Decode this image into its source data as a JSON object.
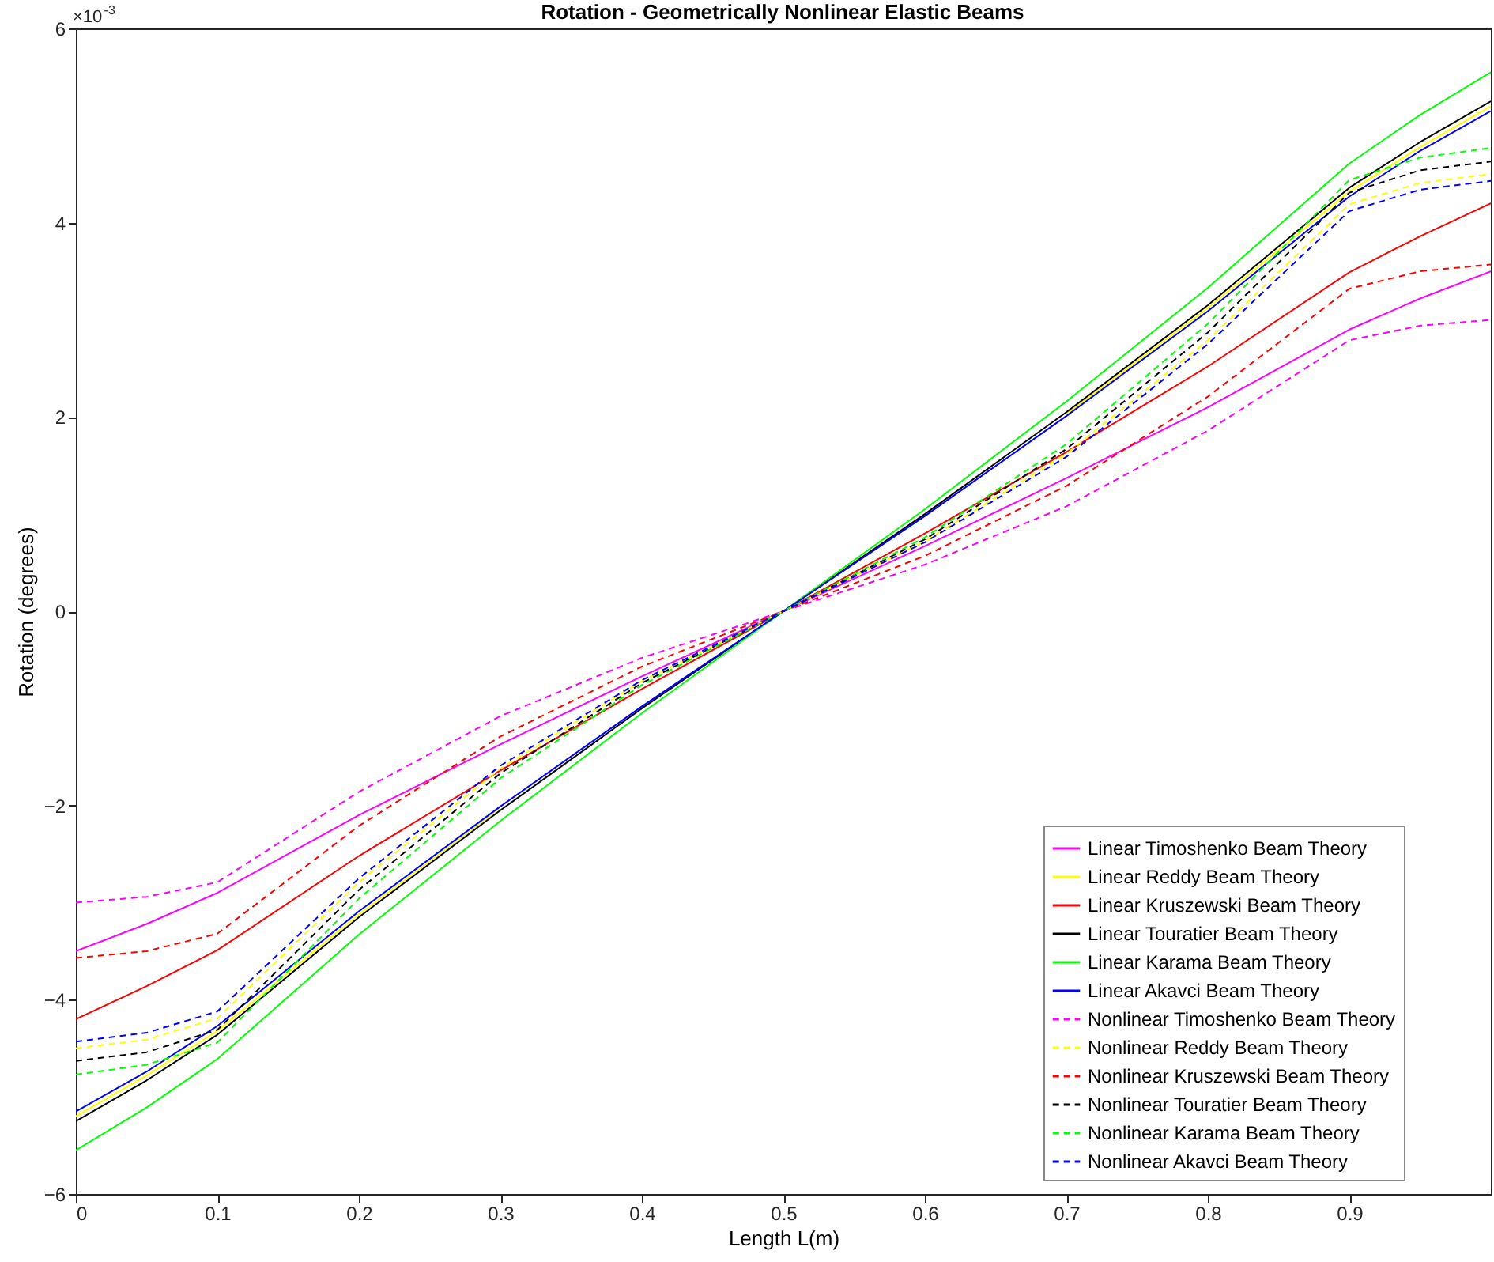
{
  "chart_data": {
    "type": "line",
    "title": "Rotation - Geometrically Nonlinear Elastic Beams",
    "xlabel": "Length L(m)",
    "ylabel": "Rotation (degrees)",
    "annotations": [
      "×10$^{-3}$"
    ],
    "x": [
      0,
      0.05,
      0.1,
      0.2,
      0.3,
      0.4,
      0.5,
      0.6,
      0.7,
      0.8,
      0.9,
      0.95,
      1
    ],
    "xlim": [
      0,
      1
    ],
    "xticks": [
      0,
      0.1,
      0.2,
      0.3,
      0.4,
      0.5,
      0.6,
      0.7,
      0.8,
      0.9
    ],
    "ylim": [
      -6,
      6
    ],
    "yticks": [
      -6,
      -4,
      -2,
      0,
      2,
      4,
      6
    ],
    "grid": false,
    "legend": "bottom right",
    "series": [
      {
        "name": "Linear Timoshenko Beam Theory",
        "color": "#ff00ff",
        "line_style": "solid",
        "values": [
          -3.5,
          -3.22,
          -2.9,
          -2.1,
          -1.37,
          -0.67,
          0,
          0.67,
          1.37,
          2.1,
          2.9,
          3.22,
          3.5
        ]
      },
      {
        "name": "Linear Reddy Beam Theory",
        "color": "#ffff00",
        "line_style": "solid",
        "values": [
          -5.2,
          -4.78,
          -4.32,
          -3.12,
          -2.03,
          null,
          null,
          null,
          2.03,
          3.12,
          4.32,
          4.78,
          5.2
        ]
      },
      {
        "name": "Linear Kruszewski Beam Theory",
        "color": "#ff0000",
        "line_style": "solid",
        "values": [
          -4.2,
          -3.86,
          -3.49,
          -2.52,
          -1.64,
          -0.8,
          0,
          0.8,
          1.64,
          2.52,
          3.49,
          3.86,
          4.2
        ]
      },
      {
        "name": "Linear Touratier Beam Theory",
        "color": "#000000",
        "line_style": "solid",
        "values": [
          -5.25,
          -4.83,
          -4.36,
          -3.15,
          -2.05,
          -1.0,
          0,
          1.0,
          2.05,
          3.15,
          4.36,
          4.83,
          5.25
        ]
      },
      {
        "name": "Linear Karama Beam Theory",
        "color": "#00ff00",
        "line_style": "solid",
        "values": [
          -5.55,
          -5.11,
          -4.61,
          -3.33,
          -2.16,
          -1.05,
          0,
          1.05,
          2.16,
          3.33,
          4.61,
          5.11,
          5.55
        ]
      },
      {
        "name": "Linear Akavci Beam Theory",
        "color": "#0000ff",
        "line_style": "solid",
        "values": [
          -5.15,
          -4.74,
          -4.27,
          -3.09,
          -2.01,
          -0.98,
          0,
          0.98,
          2.01,
          3.09,
          4.27,
          4.74,
          5.15
        ]
      },
      {
        "name": "Nonlinear Timoshenko Beam Theory",
        "color": "#ff00ff",
        "line_style": "dashed",
        "values": [
          -3.0,
          -2.94,
          -2.79,
          -1.86,
          -1.08,
          -0.48,
          0,
          0.48,
          1.08,
          1.86,
          2.79,
          2.94,
          3.0
        ]
      },
      {
        "name": "Nonlinear Reddy Beam Theory",
        "color": "#ffff00",
        "line_style": "dashed",
        "values": [
          -4.5,
          -4.41,
          -4.19,
          -2.79,
          -1.62,
          -0.72,
          0,
          0.72,
          1.62,
          2.79,
          4.19,
          4.41,
          4.5
        ]
      },
      {
        "name": "Nonlinear Kruszewski Beam Theory",
        "color": "#ff0000",
        "line_style": "dashed",
        "values": [
          -3.57,
          -3.5,
          -3.32,
          -2.21,
          -1.29,
          -0.57,
          0,
          0.57,
          1.29,
          2.21,
          3.32,
          3.5,
          3.57
        ]
      },
      {
        "name": "Nonlinear Touratier Beam Theory",
        "color": "#000000",
        "line_style": "dashed",
        "values": [
          -4.63,
          -4.54,
          -4.31,
          -2.87,
          -1.67,
          -0.74,
          0,
          0.74,
          1.67,
          2.87,
          4.31,
          4.54,
          4.63
        ]
      },
      {
        "name": "Nonlinear Karama Beam Theory",
        "color": "#00ff00",
        "line_style": "dashed",
        "values": [
          -4.77,
          -4.67,
          -4.44,
          -2.96,
          -1.72,
          -0.76,
          0,
          0.76,
          1.72,
          2.96,
          4.44,
          4.67,
          4.77
        ]
      },
      {
        "name": "Nonlinear Akavci Beam Theory",
        "color": "#0000ff",
        "line_style": "dashed",
        "values": [
          -4.43,
          -4.34,
          -4.12,
          -2.75,
          -1.59,
          -0.71,
          0,
          0.71,
          1.59,
          2.75,
          4.12,
          4.34,
          4.43
        ]
      }
    ]
  }
}
